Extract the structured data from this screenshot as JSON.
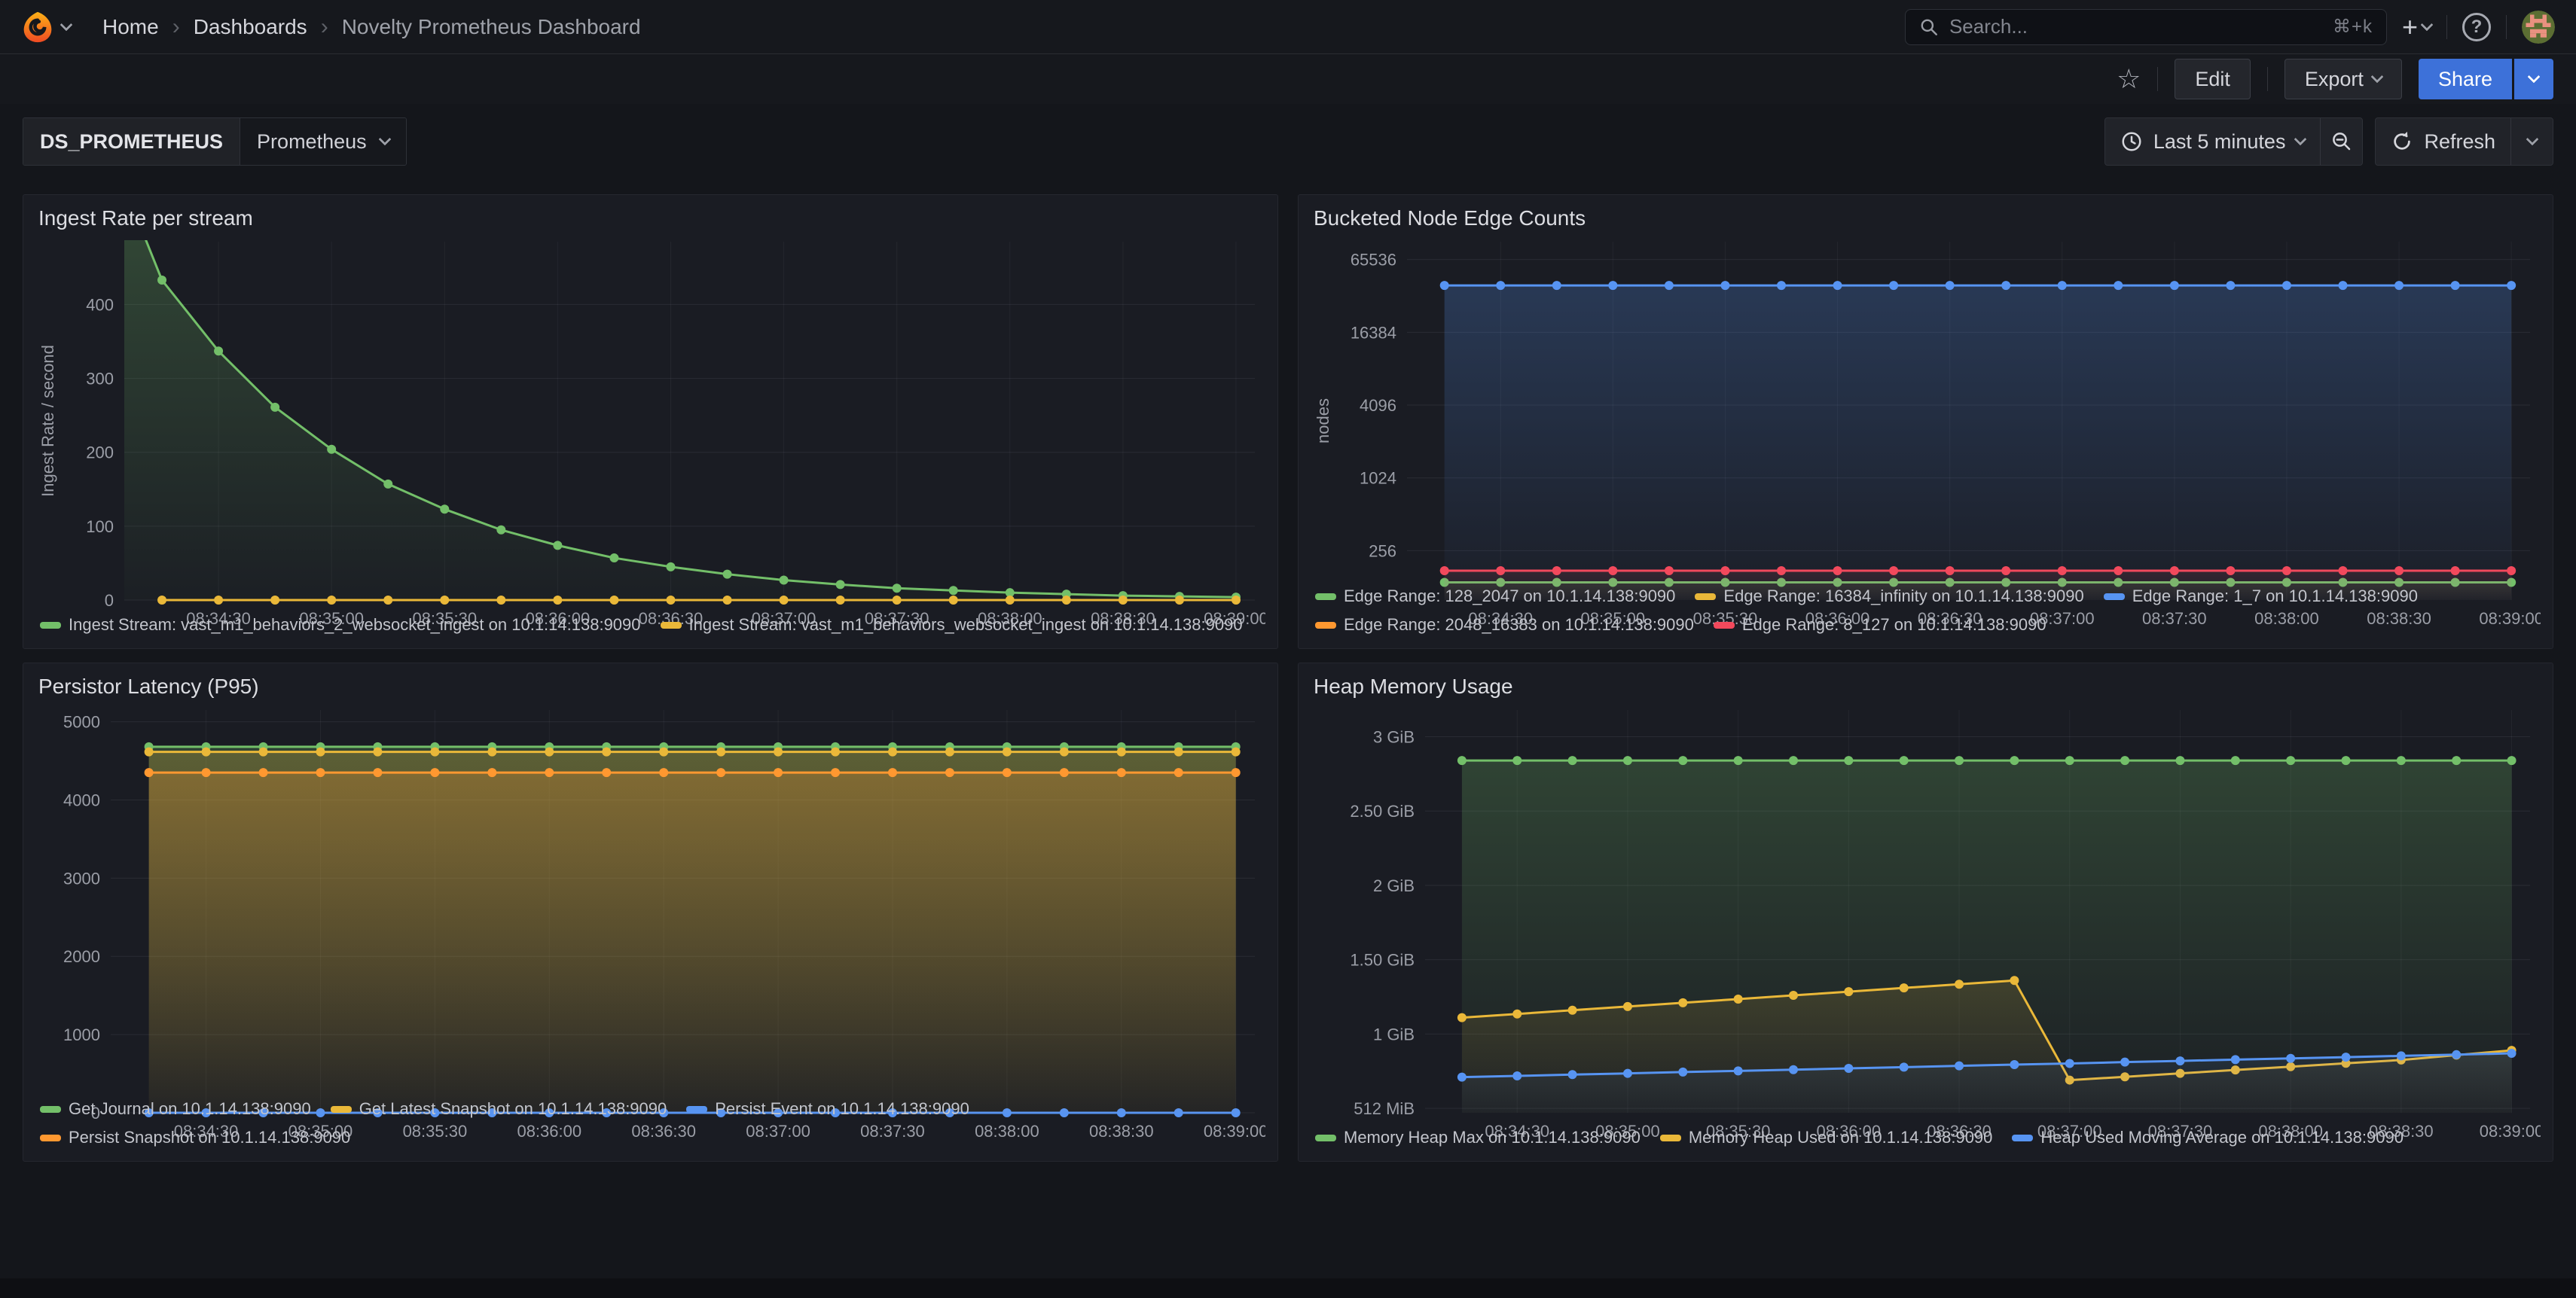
{
  "nav": {
    "breadcrumbs": [
      "Home",
      "Dashboards",
      "Novelty Prometheus Dashboard"
    ],
    "search_placeholder": "Search...",
    "search_shortcut": "⌘+k",
    "help_glyph": "?"
  },
  "toolbar": {
    "edit_label": "Edit",
    "export_label": "Export",
    "share_label": "Share",
    "star_glyph": "☆"
  },
  "variables": {
    "label": "DS_PROMETHEUS",
    "value": "Prometheus"
  },
  "time_controls": {
    "range_label": "Last 5 minutes",
    "refresh_label": "Refresh"
  },
  "colors": {
    "accent_blue": "#3d71d9",
    "series_green": "#73bf69",
    "series_yellow": "#eab839",
    "series_blue": "#5794f2",
    "series_orange": "#ff9830",
    "series_red": "#f2495c"
  },
  "chart_data": [
    {
      "type": "line",
      "title": "Ingest Rate per stream",
      "xlabel": "",
      "ylabel": "Ingest Rate / second",
      "axis_width": 118,
      "y_scale": "linear",
      "y_min": 0,
      "y_max": 485,
      "y_ticks": [
        [
          0,
          "0"
        ],
        [
          100,
          "100"
        ],
        [
          200,
          "200"
        ],
        [
          300,
          "300"
        ],
        [
          400,
          "400"
        ]
      ],
      "x_unit": "seconds after 08:34:00",
      "x_min": 5,
      "x_max": 305,
      "x_ticks": [
        [
          30,
          "08:34:30"
        ],
        [
          60,
          "08:35:00"
        ],
        [
          90,
          "08:35:30"
        ],
        [
          120,
          "08:36:00"
        ],
        [
          150,
          "08:36:30"
        ],
        [
          180,
          "08:37:00"
        ],
        [
          210,
          "08:37:30"
        ],
        [
          240,
          "08:38:00"
        ],
        [
          270,
          "08:38:30"
        ],
        [
          300,
          "08:39:00"
        ]
      ],
      "legend_position": "bottom",
      "series": [
        {
          "name": "Ingest Stream: vast_m1_behaviors_2_websocket_ingest on 10.1.14.138:9090",
          "color": "#73bf69",
          "fill": 0.12,
          "points": [
            [
              5,
              560
            ],
            [
              15,
              433
            ],
            [
              30,
              337
            ],
            [
              45,
              261
            ],
            [
              60,
              204
            ],
            [
              75,
              157
            ],
            [
              90,
              123
            ],
            [
              105,
              95
            ],
            [
              120,
              74
            ],
            [
              135,
              57
            ],
            [
              150,
              45
            ],
            [
              165,
              35
            ],
            [
              180,
              27
            ],
            [
              195,
              21
            ],
            [
              210,
              16
            ],
            [
              225,
              13
            ],
            [
              240,
              10
            ],
            [
              255,
              8
            ],
            [
              270,
              6
            ],
            [
              285,
              5
            ],
            [
              300,
              4
            ]
          ]
        },
        {
          "name": "Ingest Stream: vast_m1_behaviors_websocket_ingest on 10.1.14.138:9090",
          "color": "#eab839",
          "fill": 0,
          "points_const": [
            15,
            300,
            15,
            0
          ]
        }
      ]
    },
    {
      "type": "line",
      "title": "Bucketed Node Edge Counts",
      "xlabel": "",
      "ylabel": "nodes",
      "axis_width": 128,
      "y_scale": "log",
      "y_min": 100,
      "y_max": 92000,
      "y_ticks": [
        [
          256,
          "256"
        ],
        [
          1024,
          "1024"
        ],
        [
          4096,
          "4096"
        ],
        [
          16384,
          "16384"
        ],
        [
          65536,
          "65536"
        ]
      ],
      "x_unit": "seconds after 08:34:00",
      "x_min": 5,
      "x_max": 305,
      "x_ticks": [
        [
          30,
          "08:34:30"
        ],
        [
          60,
          "08:35:00"
        ],
        [
          90,
          "08:35:30"
        ],
        [
          120,
          "08:36:00"
        ],
        [
          150,
          "08:36:30"
        ],
        [
          180,
          "08:37:00"
        ],
        [
          210,
          "08:37:30"
        ],
        [
          240,
          "08:38:00"
        ],
        [
          270,
          "08:38:30"
        ],
        [
          300,
          "08:39:00"
        ]
      ],
      "legend_position": "bottom",
      "series": [
        {
          "name": "Edge Range: 128_2047 on 10.1.14.138:9090",
          "color": "#73bf69",
          "fill": 0.05,
          "points_const": [
            15,
            300,
            15,
            140
          ]
        },
        {
          "name": "Edge Range: 16384_infinity on 10.1.14.138:9090",
          "color": "#eab839",
          "fill": 0,
          "points_const": [
            15,
            300,
            15,
            0
          ]
        },
        {
          "name": "Edge Range: 1_7 on 10.1.14.138:9090",
          "color": "#5794f2",
          "fill": 0.1,
          "points_const": [
            15,
            300,
            15,
            40000
          ]
        },
        {
          "name": "Edge Range: 2048_16383 on 10.1.14.138:9090",
          "color": "#ff9830",
          "fill": 0,
          "points_const": [
            15,
            300,
            15,
            0
          ]
        },
        {
          "name": "Edge Range: 8_127 on 10.1.14.138:9090",
          "color": "#f2495c",
          "fill": 0.05,
          "points_const": [
            15,
            300,
            15,
            175
          ]
        }
      ]
    },
    {
      "type": "line",
      "title": "Persistor Latency (P95)",
      "xlabel": "",
      "ylabel": "",
      "axis_width": 100,
      "y_scale": "linear",
      "y_min": 0,
      "y_max": 5150,
      "y_ticks": [
        [
          0,
          "0"
        ],
        [
          1000,
          "1000"
        ],
        [
          2000,
          "2000"
        ],
        [
          3000,
          "3000"
        ],
        [
          4000,
          "4000"
        ],
        [
          5000,
          "5000"
        ]
      ],
      "x_unit": "seconds after 08:34:00",
      "x_min": 5,
      "x_max": 305,
      "x_ticks": [
        [
          30,
          "08:34:30"
        ],
        [
          60,
          "08:35:00"
        ],
        [
          90,
          "08:35:30"
        ],
        [
          120,
          "08:36:00"
        ],
        [
          150,
          "08:36:30"
        ],
        [
          180,
          "08:37:00"
        ],
        [
          210,
          "08:37:30"
        ],
        [
          240,
          "08:38:00"
        ],
        [
          270,
          "08:38:30"
        ],
        [
          300,
          "08:39:00"
        ]
      ],
      "legend_position": "bottom",
      "series": [
        {
          "name": "Get Journal on 10.1.14.138:9090",
          "color": "#73bf69",
          "fill": 0.1,
          "points_const": [
            15,
            300,
            15,
            4680
          ]
        },
        {
          "name": "Get Latest Snapshot on 10.1.14.138:9090",
          "color": "#eab839",
          "fill": 0.1,
          "points_const": [
            15,
            300,
            15,
            4615
          ]
        },
        {
          "name": "Persist Event on 10.1.14.138:9090",
          "color": "#5794f2",
          "fill": 0,
          "points_const": [
            15,
            300,
            15,
            0
          ]
        },
        {
          "name": "Persist Snapshot on 10.1.14.138:9090",
          "color": "#ff9830",
          "fill": 0.1,
          "points_const": [
            15,
            300,
            15,
            4350
          ]
        }
      ]
    },
    {
      "type": "line",
      "title": "Heap Memory Usage",
      "xlabel": "",
      "ylabel": "",
      "y_unit": "GiB",
      "axis_width": 152,
      "y_scale": "linear",
      "y_min": 0.47,
      "y_max": 3.18,
      "y_ticks": [
        [
          0.5,
          "512 MiB"
        ],
        [
          1,
          "1 GiB"
        ],
        [
          1.5,
          "1.50 GiB"
        ],
        [
          2,
          "2 GiB"
        ],
        [
          2.5,
          "2.50 GiB"
        ],
        [
          3,
          "3 GiB"
        ]
      ],
      "x_unit": "seconds after 08:34:00",
      "x_min": 5,
      "x_max": 305,
      "x_ticks": [
        [
          30,
          "08:34:30"
        ],
        [
          60,
          "08:35:00"
        ],
        [
          90,
          "08:35:30"
        ],
        [
          120,
          "08:36:00"
        ],
        [
          150,
          "08:36:30"
        ],
        [
          180,
          "08:37:00"
        ],
        [
          210,
          "08:37:30"
        ],
        [
          240,
          "08:38:00"
        ],
        [
          270,
          "08:38:30"
        ],
        [
          300,
          "08:39:00"
        ]
      ],
      "legend_position": "bottom",
      "series": [
        {
          "name": "Memory Heap Max on 10.1.14.138:9090",
          "color": "#73bf69",
          "fill": 0.1,
          "points_const": [
            15,
            300,
            15,
            2.84
          ]
        },
        {
          "name": "Memory Heap Used on 10.1.14.138:9090",
          "color": "#eab839",
          "fill": 0.06,
          "points": [
            [
              15,
              1.11
            ],
            [
              30,
              1.135
            ],
            [
              45,
              1.16
            ],
            [
              60,
              1.185
            ],
            [
              75,
              1.21
            ],
            [
              90,
              1.235
            ],
            [
              105,
              1.26
            ],
            [
              120,
              1.285
            ],
            [
              135,
              1.31
            ],
            [
              150,
              1.335
            ],
            [
              165,
              1.36
            ],
            [
              180,
              0.69
            ],
            [
              195,
              0.712
            ],
            [
              210,
              0.735
            ],
            [
              225,
              0.758
            ],
            [
              240,
              0.78
            ],
            [
              255,
              0.803
            ],
            [
              270,
              0.825
            ],
            [
              285,
              0.858
            ],
            [
              300,
              0.89
            ]
          ]
        },
        {
          "name": "Heap Used Moving Average on 10.1.14.138:9090",
          "color": "#5794f2",
          "fill": 0.04,
          "points": [
            [
              15,
              0.71
            ],
            [
              30,
              0.718
            ],
            [
              45,
              0.727
            ],
            [
              60,
              0.735
            ],
            [
              75,
              0.744
            ],
            [
              90,
              0.752
            ],
            [
              105,
              0.76
            ],
            [
              120,
              0.769
            ],
            [
              135,
              0.777
            ],
            [
              150,
              0.786
            ],
            [
              165,
              0.794
            ],
            [
              180,
              0.802
            ],
            [
              195,
              0.811
            ],
            [
              210,
              0.819
            ],
            [
              225,
              0.828
            ],
            [
              240,
              0.836
            ],
            [
              255,
              0.844
            ],
            [
              270,
              0.853
            ],
            [
              285,
              0.861
            ],
            [
              300,
              0.87
            ]
          ]
        }
      ]
    }
  ]
}
